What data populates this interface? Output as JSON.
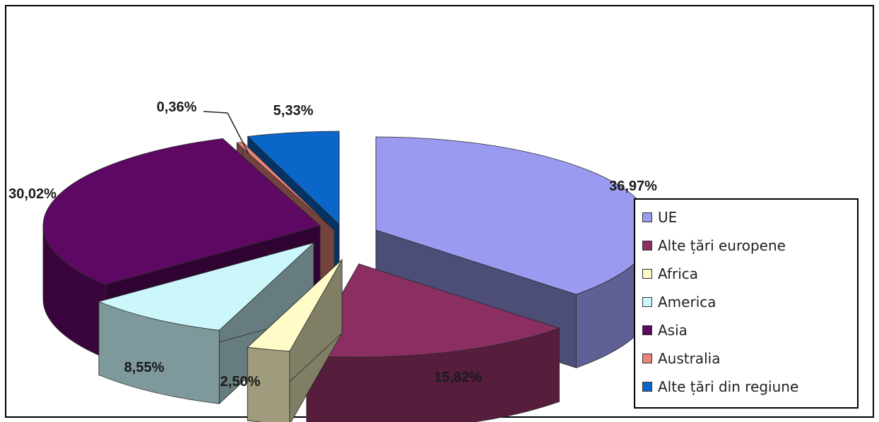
{
  "chart_data": {
    "type": "pie",
    "subtype": "3d-exploded",
    "title": "",
    "unit": "%",
    "slices": [
      {
        "label": "UE",
        "value": 36.97,
        "display": "36,97%",
        "color": "#9a9bf0"
      },
      {
        "label": "Alte țări europene",
        "value": 15.82,
        "display": "15,82%",
        "color": "#8b2f63"
      },
      {
        "label": "Africa",
        "value": 2.5,
        "display": "2,50%",
        "color": "#fffcc8"
      },
      {
        "label": "America",
        "value": 8.55,
        "display": "8,55%",
        "color": "#cbf7fb"
      },
      {
        "label": "Asia",
        "value": 30.02,
        "display": "30,02%",
        "color": "#5d0863"
      },
      {
        "label": "Australia",
        "value": 0.36,
        "display": "0,36%",
        "color": "#e7857b"
      },
      {
        "label": "Alte țări din regiune",
        "value": 5.33,
        "display": "5,33%",
        "color": "#0a66c8"
      }
    ],
    "legend_position": "right",
    "grid": false
  }
}
